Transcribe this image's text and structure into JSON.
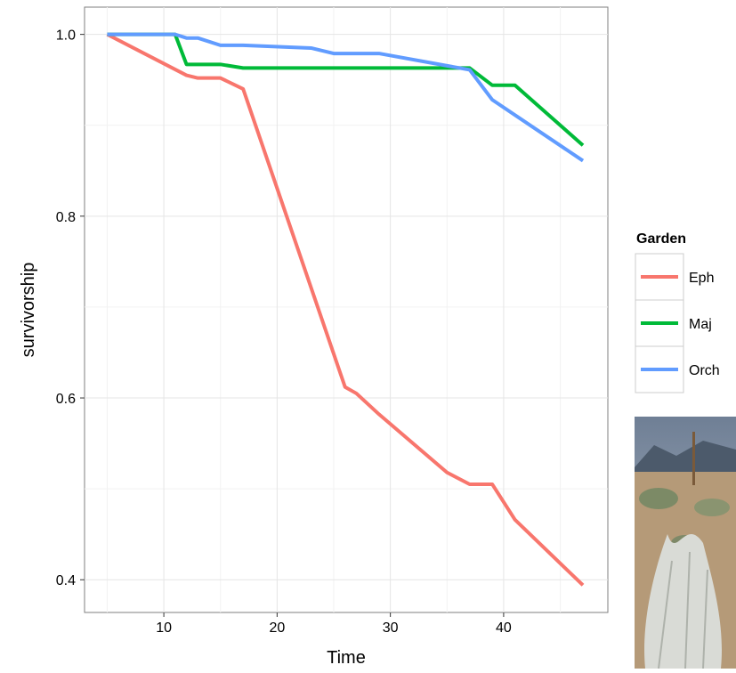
{
  "chart_data": {
    "type": "line",
    "x_label": "Time",
    "y_label": "survivorship",
    "legend_title": "Garden",
    "legend_position": "right",
    "xlim": [
      3.0,
      49.2
    ],
    "ylim": [
      0.364,
      1.03
    ],
    "xticks": [
      10,
      20,
      30,
      40
    ],
    "yticks": [
      {
        "value": 0.4,
        "label": "0.4"
      },
      {
        "value": 0.6,
        "label": "0.6"
      },
      {
        "value": 0.8,
        "label": "0.8"
      },
      {
        "value": 1.0,
        "label": "1.0"
      }
    ],
    "x_minor_ticks": [
      5,
      15,
      25,
      35,
      45
    ],
    "y_minor_ticks": [
      0.5,
      0.7,
      0.9
    ],
    "grid": true,
    "series": [
      {
        "name": "Eph",
        "color": "#f8766d",
        "x": [
          5,
          12,
          13,
          15,
          17,
          26,
          27,
          29,
          35,
          37,
          39,
          41,
          47
        ],
        "values": [
          1.0,
          0.955,
          0.952,
          0.952,
          0.94,
          0.612,
          0.605,
          0.582,
          0.518,
          0.505,
          0.505,
          0.466,
          0.394
        ]
      },
      {
        "name": "Maj",
        "color": "#00ba38",
        "x": [
          5,
          11,
          12,
          15,
          17,
          37,
          39,
          41,
          47
        ],
        "values": [
          1.0,
          1.0,
          0.967,
          0.967,
          0.963,
          0.963,
          0.944,
          0.944,
          0.878
        ]
      },
      {
        "name": "Orch",
        "color": "#619cff",
        "x": [
          5,
          11,
          12,
          13,
          15,
          17,
          23,
          25,
          29,
          37,
          39,
          47
        ],
        "values": [
          1.0,
          1.0,
          0.996,
          0.996,
          0.988,
          0.988,
          0.985,
          0.979,
          0.979,
          0.961,
          0.928,
          0.861
        ]
      }
    ]
  }
}
